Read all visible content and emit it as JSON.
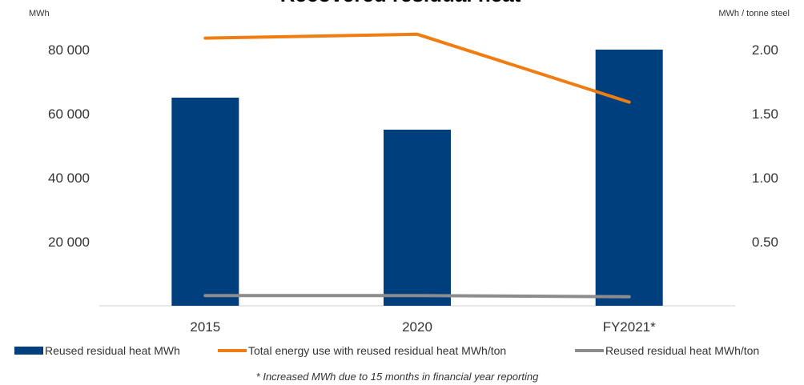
{
  "chart_data": {
    "type": "bar",
    "title": "Recovered residual heat",
    "left_axis_unit": "MWh",
    "right_axis_unit": "MWh / tonne steel",
    "categories": [
      "2015",
      "2020",
      "FY2021*"
    ],
    "ylim_left": [
      0,
      90000
    ],
    "ylim_right": [
      0,
      2.25
    ],
    "left_ticks": [
      {
        "value": 20000,
        "label": "20 000"
      },
      {
        "value": 40000,
        "label": "40 000"
      },
      {
        "value": 60000,
        "label": "60 000"
      },
      {
        "value": 80000,
        "label": "80 000"
      }
    ],
    "right_ticks": [
      {
        "value": 0.5,
        "label": "0.50"
      },
      {
        "value": 1.0,
        "label": "1.00"
      },
      {
        "value": 1.5,
        "label": "1.50"
      },
      {
        "value": 2.0,
        "label": "2.00"
      }
    ],
    "series": [
      {
        "name": "Reused residual heat MWh",
        "type": "bar",
        "axis": "left",
        "color": "#003f7d",
        "values": [
          65000,
          55000,
          80000
        ]
      },
      {
        "name": "Total energy use with reused residual heat MWh/ton",
        "type": "line",
        "axis": "right",
        "color": "#f07d12",
        "values": [
          2.09,
          2.12,
          1.59
        ]
      },
      {
        "name": "Reused residual heat MWh/ton",
        "type": "line",
        "axis": "right",
        "color": "#8c8c8c",
        "values": [
          0.08,
          0.08,
          0.07
        ]
      }
    ],
    "legend_position": "bottom",
    "grid": false,
    "footnote": "* Increased MWh due to 15 months in financial year reporting"
  }
}
